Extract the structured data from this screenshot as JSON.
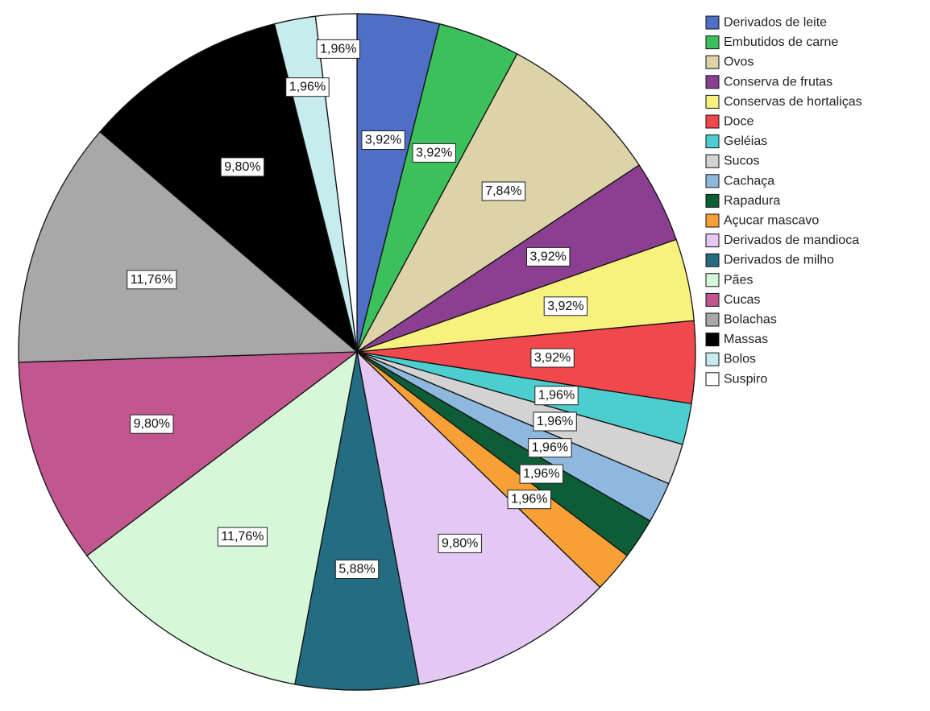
{
  "chart_data": {
    "type": "pie",
    "title": "",
    "legend_position": "right",
    "start_angle_deg": 0,
    "direction": "clockwise",
    "slices": [
      {
        "label": "Derivados de leite",
        "value": 3.92,
        "display": "3,92%",
        "color": "#4f6ec6"
      },
      {
        "label": "Embutidos de carne",
        "value": 3.92,
        "display": "3,92%",
        "color": "#3cc05c"
      },
      {
        "label": "Ovos",
        "value": 7.84,
        "display": "7,84%",
        "color": "#dcd3a8"
      },
      {
        "label": "Conserva de frutas",
        "value": 3.92,
        "display": "3,92%",
        "color": "#8b3f91"
      },
      {
        "label": "Conservas de hortaliças",
        "value": 3.92,
        "display": "3,92%",
        "color": "#f8f17e"
      },
      {
        "label": "Doce",
        "value": 3.92,
        "display": "3,92%",
        "color": "#f0484c"
      },
      {
        "label": "Geléias",
        "value": 1.96,
        "display": "1,96%",
        "color": "#4ccdcf"
      },
      {
        "label": "Sucos",
        "value": 1.96,
        "display": "1,96%",
        "color": "#d3d3d3"
      },
      {
        "label": "Cachaça",
        "value": 1.96,
        "display": "1,96%",
        "color": "#8fb8de"
      },
      {
        "label": "Rapadura",
        "value": 1.96,
        "display": "1,96%",
        "color": "#0d5e37"
      },
      {
        "label": "Açucar mascavo",
        "value": 1.96,
        "display": "1,96%",
        "color": "#f6a035"
      },
      {
        "label": "Derivados de mandioca",
        "value": 9.8,
        "display": "9,80%",
        "color": "#e2c8f3"
      },
      {
        "label": "Derivados de milho",
        "value": 5.88,
        "display": "5,88%",
        "color": "#236c82"
      },
      {
        "label": "Pães",
        "value": 11.76,
        "display": "11,76%",
        "color": "#d6f8d8"
      },
      {
        "label": "Cucas",
        "value": 9.8,
        "display": "9,80%",
        "color": "#c2578f"
      },
      {
        "label": "Bolachas",
        "value": 11.76,
        "display": "11,76%",
        "color": "#a8a8a8"
      },
      {
        "label": "Massas",
        "value": 9.8,
        "display": "9,80%",
        "color": "#000000"
      },
      {
        "label": "Bolos",
        "value": 1.96,
        "display": "1,96%",
        "color": "#c6ecee"
      },
      {
        "label": "Suspiro",
        "value": 1.96,
        "display": "1,96%",
        "color": "#ffffff"
      }
    ]
  }
}
